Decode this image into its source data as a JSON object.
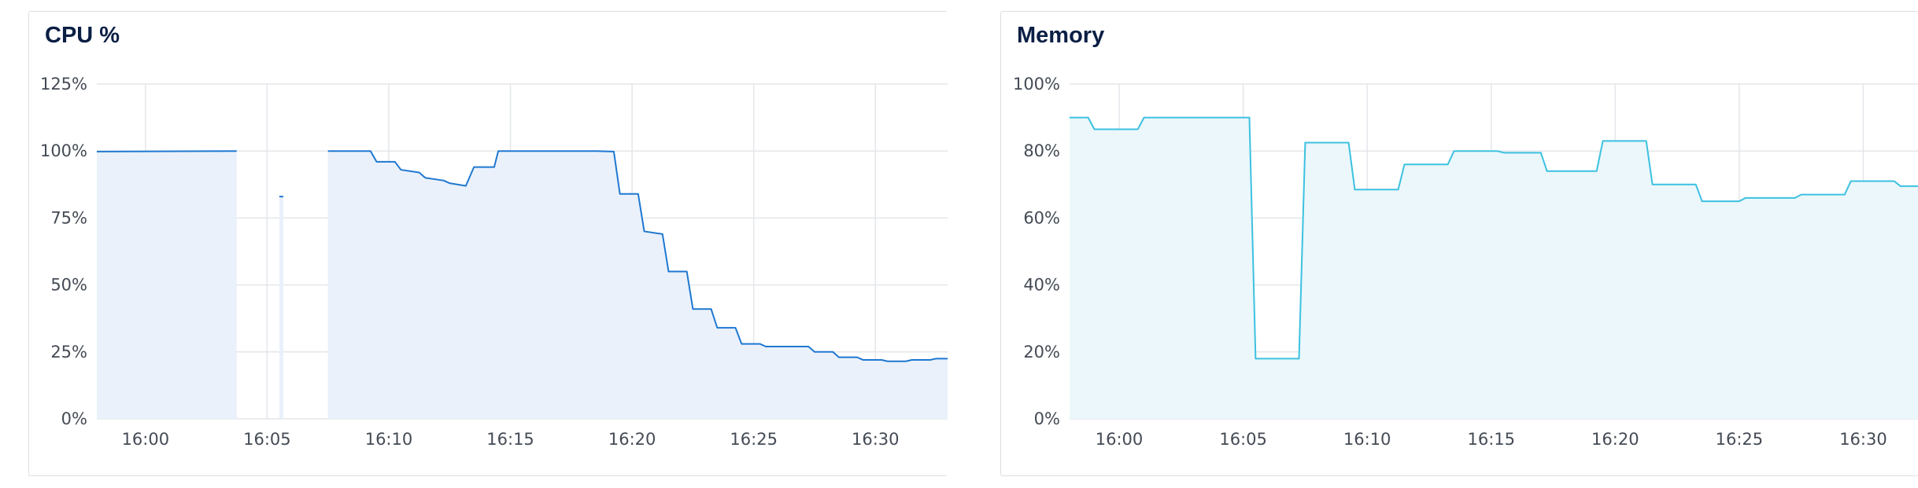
{
  "panels": [
    {
      "title": "CPU %",
      "color": "#1f78d1",
      "fill": "#eaf1fb",
      "chart_data": {
        "type": "area",
        "title": "CPU %",
        "xlim": [
          "15:58",
          "16:33"
        ],
        "ylim": [
          0,
          125
        ],
        "grid": true,
        "y_ticks": [
          {
            "v": 0,
            "label": "0%"
          },
          {
            "v": 25,
            "label": "25%"
          },
          {
            "v": 50,
            "label": "50%"
          },
          {
            "v": 75,
            "label": "75%"
          },
          {
            "v": 100,
            "label": "100%"
          },
          {
            "v": 125,
            "label": "125%"
          }
        ],
        "x_ticks": [
          "16:00",
          "16:05",
          "16:10",
          "16:15",
          "16:20",
          "16:25",
          "16:30"
        ],
        "segments": [
          [
            [
              "15:58",
              99.8
            ],
            [
              "16:03:45",
              100
            ]
          ],
          [
            [
              "16:05:30",
              83
            ],
            [
              "16:05:40",
              83
            ]
          ],
          [
            [
              "16:07:30",
              100
            ],
            [
              "16:09:15",
              100
            ],
            [
              "16:09:30",
              96
            ],
            [
              "16:10:15",
              96
            ],
            [
              "16:10:30",
              93
            ],
            [
              "16:11:15",
              92
            ],
            [
              "16:11:30",
              90
            ],
            [
              "16:12:15",
              89
            ],
            [
              "16:12:30",
              88
            ],
            [
              "16:13:10",
              87
            ],
            [
              "16:13:30",
              94
            ],
            [
              "16:14:20",
              94
            ],
            [
              "16:14:30",
              100
            ],
            [
              "16:18:30",
              100
            ],
            [
              "16:19:15",
              99.8
            ],
            [
              "16:19:30",
              84
            ],
            [
              "16:20:15",
              84
            ],
            [
              "16:20:30",
              70
            ],
            [
              "16:21:15",
              69
            ],
            [
              "16:21:30",
              55
            ],
            [
              "16:22:15",
              55
            ],
            [
              "16:22:30",
              41
            ],
            [
              "16:23:15",
              41
            ],
            [
              "16:23:30",
              34
            ],
            [
              "16:24:15",
              34
            ],
            [
              "16:24:30",
              28
            ],
            [
              "16:25:15",
              28
            ],
            [
              "16:25:30",
              27
            ],
            [
              "16:27:15",
              27
            ],
            [
              "16:27:30",
              25
            ],
            [
              "16:28:15",
              25
            ],
            [
              "16:28:30",
              23
            ],
            [
              "16:29:15",
              23
            ],
            [
              "16:29:30",
              22
            ],
            [
              "16:30:15",
              22
            ],
            [
              "16:30:30",
              21.5
            ],
            [
              "16:31:15",
              21.5
            ],
            [
              "16:31:30",
              22
            ],
            [
              "16:32:15",
              22
            ],
            [
              "16:32:30",
              22.5
            ],
            [
              "16:33",
              22.5
            ]
          ]
        ]
      }
    },
    {
      "title": "Memory",
      "color": "#3cc1e0",
      "fill": "#ebf7fb",
      "chart_data": {
        "type": "area",
        "title": "Memory",
        "xlim": [
          "15:58",
          "16:33"
        ],
        "ylim": [
          0,
          100
        ],
        "grid": true,
        "y_ticks": [
          {
            "v": 0,
            "label": "0%"
          },
          {
            "v": 20,
            "label": "20%"
          },
          {
            "v": 40,
            "label": "40%"
          },
          {
            "v": 60,
            "label": "60%"
          },
          {
            "v": 80,
            "label": "80%"
          },
          {
            "v": 100,
            "label": "100%"
          }
        ],
        "x_ticks": [
          "16:00",
          "16:05",
          "16:10",
          "16:15",
          "16:20",
          "16:25",
          "16:30"
        ],
        "segments": [
          [
            [
              "15:58",
              90
            ],
            [
              "15:58:45",
              90
            ],
            [
              "15:59:00",
              86.5
            ],
            [
              "16:00:45",
              86.5
            ],
            [
              "16:01:00",
              90
            ],
            [
              "16:05:15",
              90
            ],
            [
              "16:05:30",
              18
            ],
            [
              "16:07:15",
              18
            ],
            [
              "16:07:30",
              82.5
            ],
            [
              "16:09:15",
              82.5
            ],
            [
              "16:09:30",
              68.5
            ],
            [
              "16:11:15",
              68.5
            ],
            [
              "16:11:30",
              76
            ],
            [
              "16:13:15",
              76
            ],
            [
              "16:13:30",
              80
            ],
            [
              "16:15:15",
              80
            ],
            [
              "16:15:30",
              79.5
            ],
            [
              "16:17:00",
              79.5
            ],
            [
              "16:17:15",
              74
            ],
            [
              "16:19:15",
              74
            ],
            [
              "16:19:30",
              83
            ],
            [
              "16:21:15",
              83
            ],
            [
              "16:21:30",
              70
            ],
            [
              "16:23:15",
              70
            ],
            [
              "16:23:30",
              65
            ],
            [
              "16:25:00",
              65
            ],
            [
              "16:25:15",
              66
            ],
            [
              "16:27:15",
              66
            ],
            [
              "16:27:30",
              67
            ],
            [
              "16:29:15",
              67
            ],
            [
              "16:29:30",
              71
            ],
            [
              "16:31:15",
              71
            ],
            [
              "16:31:30",
              69.5
            ],
            [
              "16:33",
              69.5
            ]
          ]
        ]
      }
    }
  ]
}
